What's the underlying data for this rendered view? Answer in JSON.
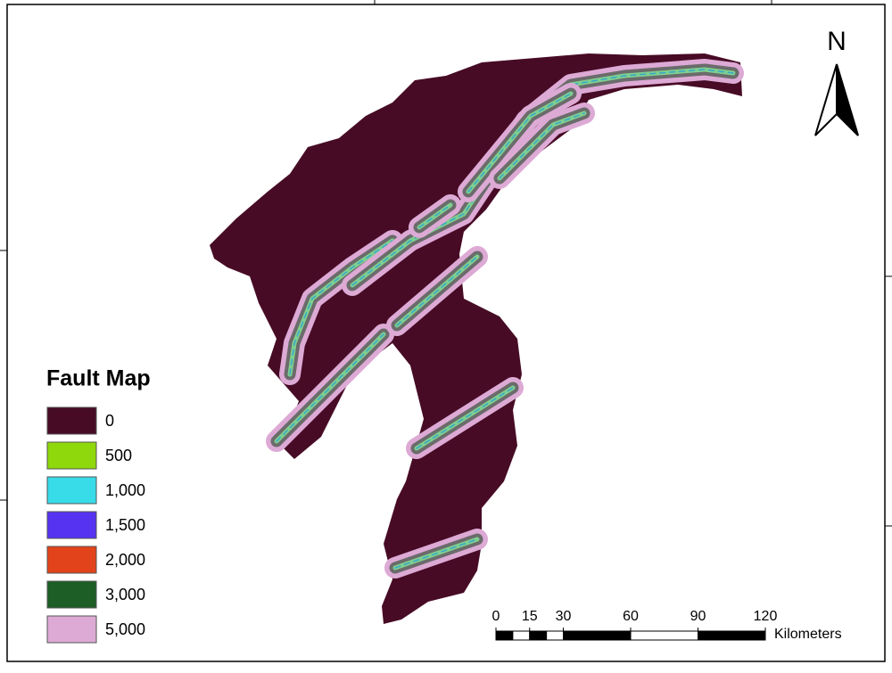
{
  "north_arrow": {
    "label": "N"
  },
  "legend": {
    "title": "Fault Map",
    "items": [
      {
        "label": "0",
        "color": "#470b25"
      },
      {
        "label": "500",
        "color": "#8fd80c"
      },
      {
        "label": "1,000",
        "color": "#38dbe8"
      },
      {
        "label": "1,500",
        "color": "#5533f0"
      },
      {
        "label": "2,000",
        "color": "#e2431a"
      },
      {
        "label": "3,000",
        "color": "#1c5e26"
      },
      {
        "label": "5,000",
        "color": "#ddaad5"
      }
    ]
  },
  "scale_bar": {
    "ticks": [
      0,
      15,
      30,
      60,
      90,
      120
    ],
    "unit": "Kilometers"
  }
}
